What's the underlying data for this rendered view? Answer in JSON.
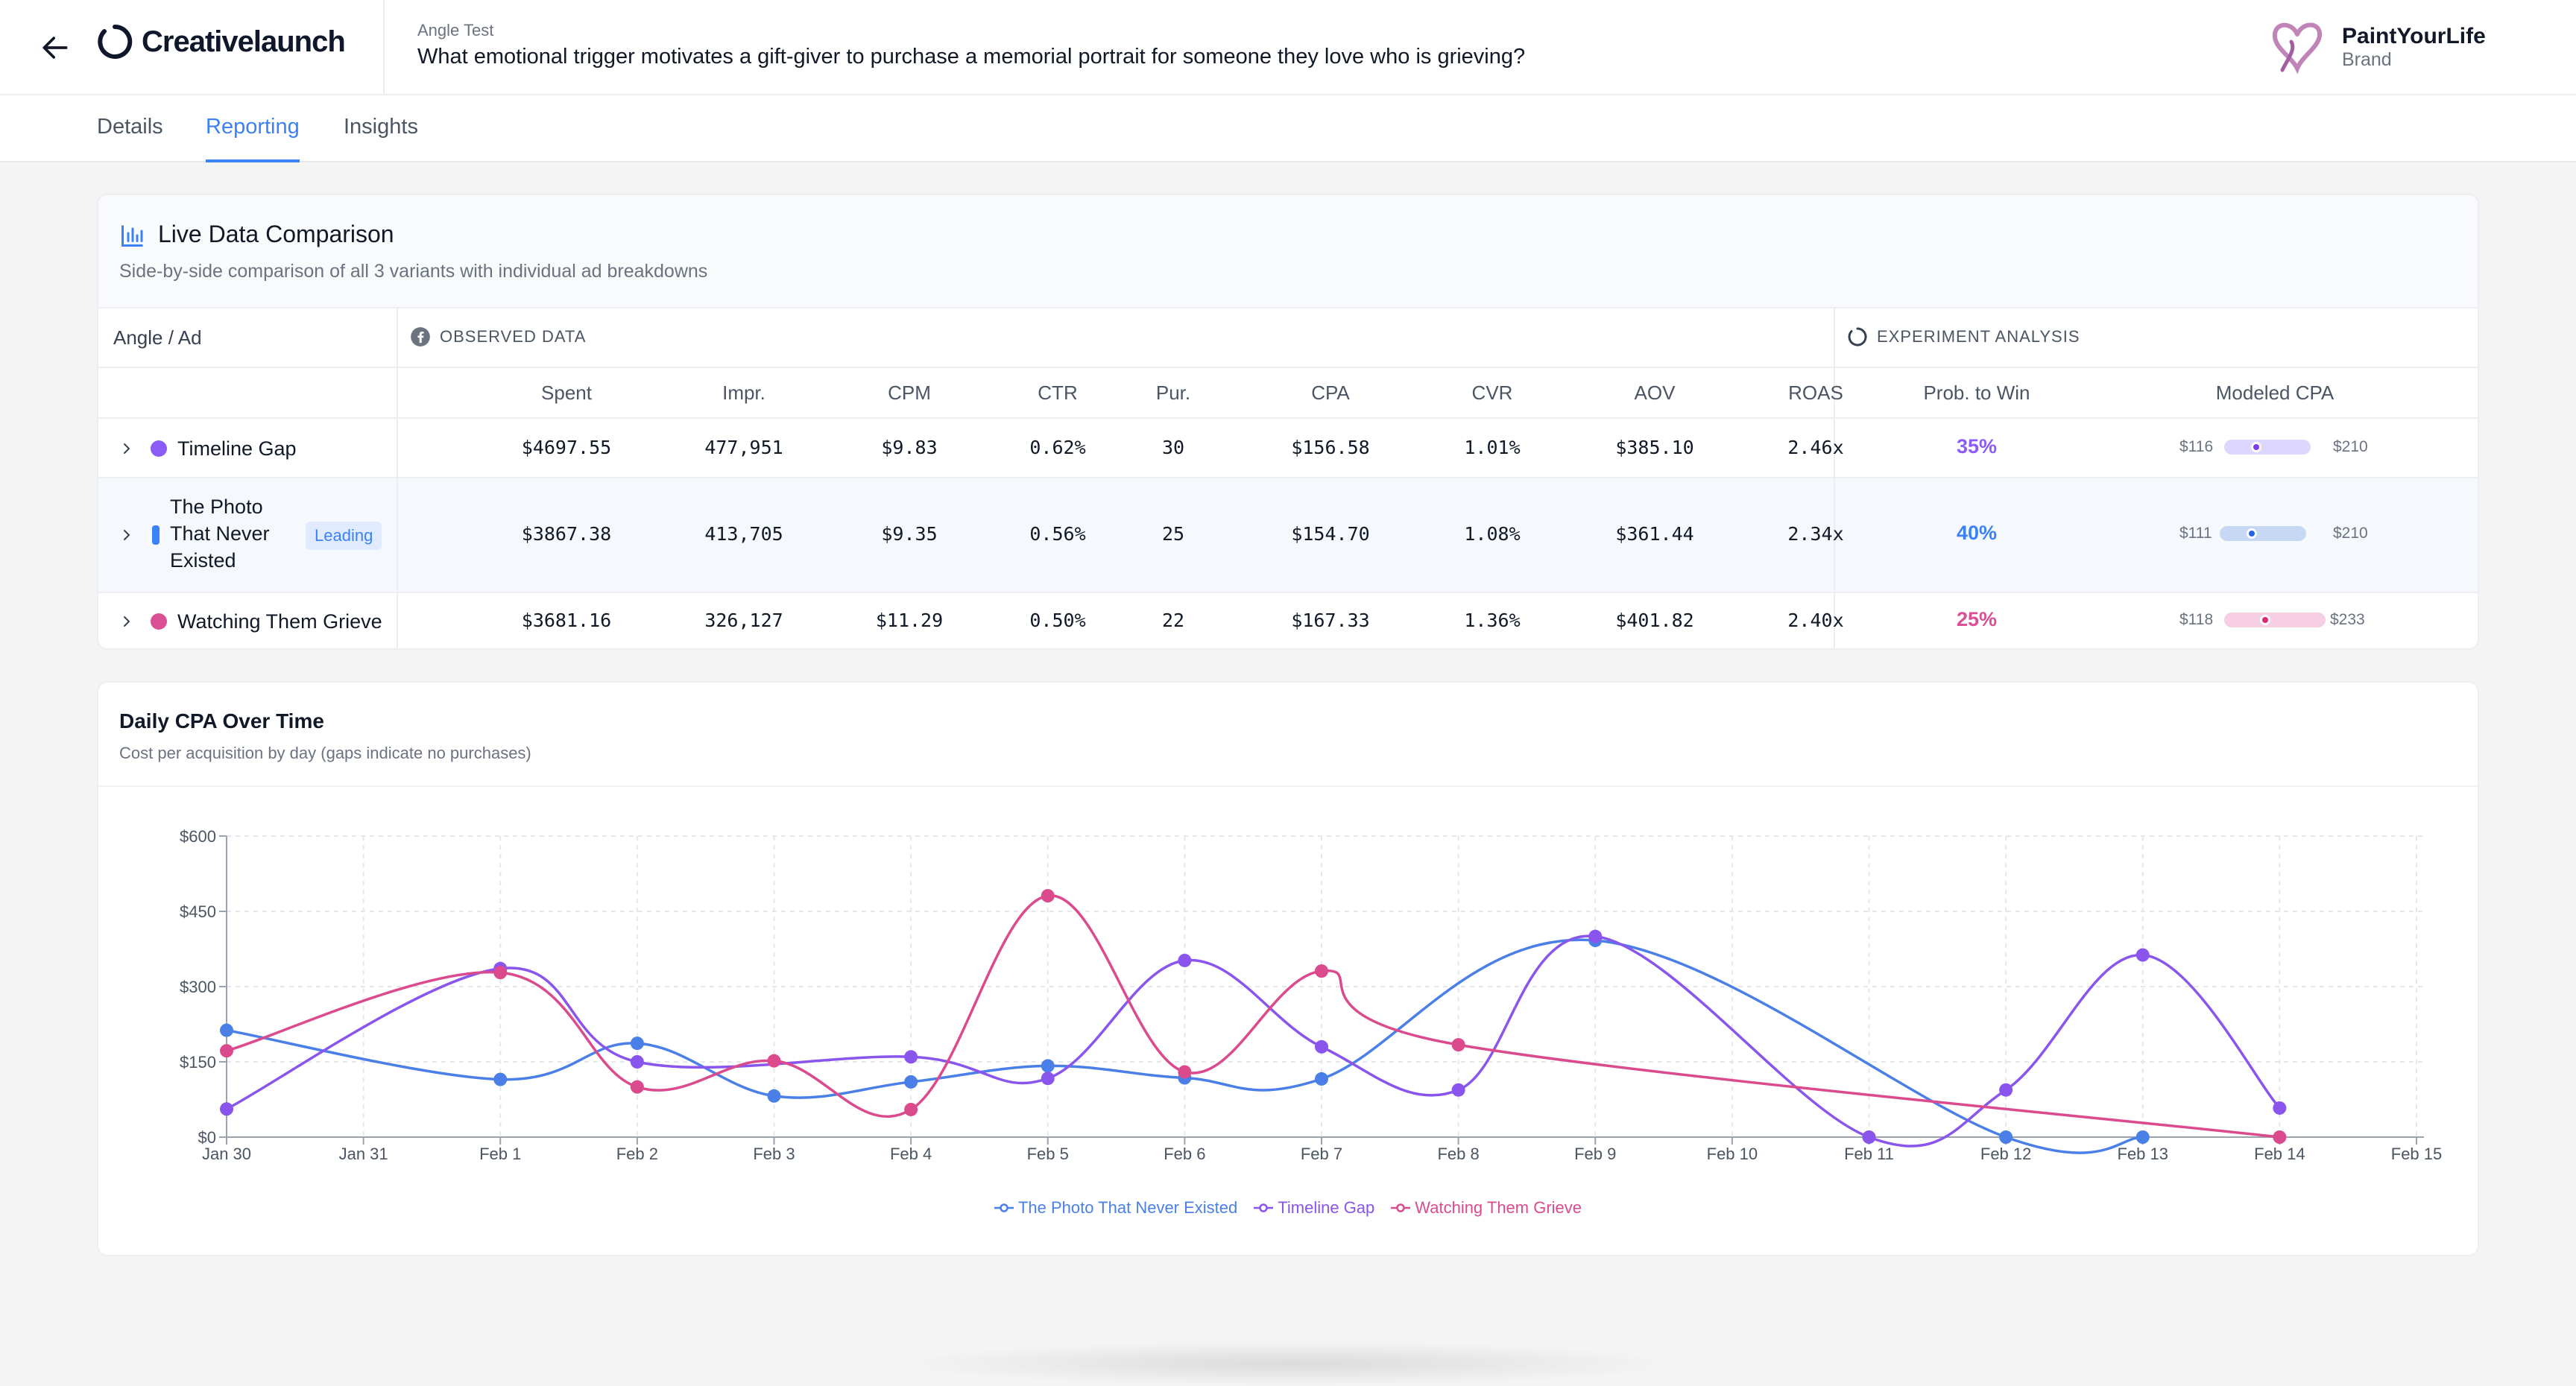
{
  "header": {
    "app_name": "Creativelaunch",
    "test_type": "Angle Test",
    "question": "What emotional trigger motivates a gift-giver to purchase a memorial portrait for someone they love who is grieving?",
    "brand_name": "PaintYourLife",
    "brand_sub": "Brand"
  },
  "tabs": [
    {
      "label": "Details"
    },
    {
      "label": "Reporting",
      "active": true
    },
    {
      "label": "Insights"
    }
  ],
  "comparison": {
    "title": "Live Data Comparison",
    "subtitle": "Side-by-side comparison of all 3 variants with individual ad breakdowns",
    "col_angle": "Angle / Ad",
    "group_observed": "OBSERVED DATA",
    "group_analysis": "EXPERIMENT ANALYSIS",
    "columns": [
      "Spent",
      "Impr.",
      "CPM",
      "CTR",
      "Pur.",
      "CPA",
      "CVR",
      "AOV",
      "ROAS",
      "Prob. to Win",
      "Modeled CPA"
    ],
    "leading_label": "Leading",
    "rows": [
      {
        "name": "Timeline Gap",
        "color": "#8b5cf6",
        "spent": "$4697.55",
        "impr": "477,951",
        "cpm": "$9.83",
        "ctr": "0.62%",
        "pur": "30",
        "cpa": "$156.58",
        "cvr": "1.01%",
        "aov": "$385.10",
        "roas": "2.46x",
        "prob": "35%",
        "prob_value": 0.35,
        "min": "$116",
        "max": "$210",
        "cpa_value": 156.58
      },
      {
        "name": "The Photo That Never Existed",
        "color": "#3b82f6",
        "leading": true,
        "spent": "$3867.38",
        "impr": "413,705",
        "cpm": "$9.35",
        "ctr": "0.56%",
        "pur": "25",
        "cpa": "$154.70",
        "cvr": "1.08%",
        "aov": "$361.44",
        "roas": "2.34x",
        "prob": "40%",
        "prob_value": 0.4,
        "min": "$111",
        "max": "$210",
        "cpa_value": 154.7
      },
      {
        "name": "Watching Them Grieve",
        "color": "#db4f94",
        "spent": "$3681.16",
        "impr": "326,127",
        "cpm": "$11.29",
        "ctr": "0.50%",
        "pur": "22",
        "cpa": "$167.33",
        "cvr": "1.36%",
        "aov": "$401.82",
        "roas": "2.40x",
        "prob": "25%",
        "prob_value": 0.25,
        "min": "$118",
        "max": "$233",
        "cpa_value": 167.33
      }
    ]
  },
  "daily_chart": {
    "title": "Daily CPA Over Time",
    "subtitle": "Cost per acquisition by day (gaps indicate no purchases)"
  },
  "chart_data": {
    "type": "line",
    "title": "Daily CPA Over Time",
    "x": [
      "Jan 30",
      "Jan 31",
      "Feb 1",
      "Feb 2",
      "Feb 3",
      "Feb 4",
      "Feb 5",
      "Feb 6",
      "Feb 7",
      "Feb 8",
      "Feb 9",
      "Feb 10",
      "Feb 11",
      "Feb 12",
      "Feb 13",
      "Feb 14",
      "Feb 15"
    ],
    "yticks": [
      "$0",
      "$150",
      "$300",
      "$450",
      "$600"
    ],
    "ylim": [
      0,
      600
    ],
    "grid": true,
    "legend_position": "bottom",
    "series": [
      {
        "name": "The Photo That Never Existed",
        "color": "#4a7fe8",
        "points": [
          [
            0,
            213
          ],
          [
            2,
            115
          ],
          [
            3,
            187
          ],
          [
            4,
            82
          ],
          [
            5,
            110
          ],
          [
            6,
            142
          ],
          [
            7,
            118
          ],
          [
            8,
            116
          ],
          [
            10,
            392
          ],
          [
            13,
            0
          ],
          [
            14,
            0
          ]
        ]
      },
      {
        "name": "Timeline Gap",
        "color": "#8a55ec",
        "points": [
          [
            0,
            56
          ],
          [
            2,
            336
          ],
          [
            3,
            150
          ],
          [
            5,
            160
          ],
          [
            6,
            117
          ],
          [
            7,
            352
          ],
          [
            8,
            180
          ],
          [
            9,
            94
          ],
          [
            10,
            400
          ],
          [
            12,
            0
          ],
          [
            13,
            94
          ],
          [
            14,
            363
          ],
          [
            15,
            58
          ]
        ]
      },
      {
        "name": "Watching Them Grieve",
        "color": "#dc4a8e",
        "points": [
          [
            0,
            172
          ],
          [
            2,
            328
          ],
          [
            3,
            100
          ],
          [
            4,
            152
          ],
          [
            5,
            55
          ],
          [
            6,
            481
          ],
          [
            7,
            130
          ],
          [
            8,
            331
          ],
          [
            9,
            184
          ],
          [
            15,
            0
          ]
        ]
      }
    ]
  }
}
